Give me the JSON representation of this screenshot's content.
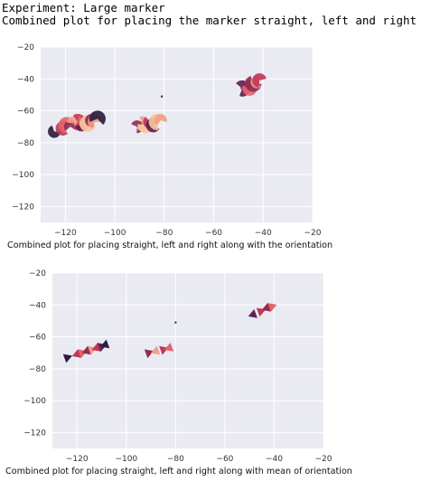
{
  "header": {
    "line1": "Experiment: Large marker",
    "line2": "Combined plot for placing the marker straight, left and right"
  },
  "colors": {
    "plot_background": "#eaeaf2",
    "gridline": "#ffffff",
    "palette": [
      "#2d1e3e",
      "#5e2250",
      "#8f2d56",
      "#c0395a",
      "#e0666a",
      "#f09e85",
      "#f6c6a0"
    ]
  },
  "chart_data": [
    {
      "type": "scatter",
      "title": "",
      "caption": "Combined plot for placing straight, left and right along with the orientation",
      "xlabel": "",
      "ylabel": "",
      "xlim": [
        -130,
        -20
      ],
      "ylim": [
        -130,
        -20
      ],
      "xticks": [
        -120,
        -100,
        -80,
        -60,
        -40,
        -20
      ],
      "yticks": [
        -20,
        -40,
        -60,
        -80,
        -100,
        -120
      ],
      "xtick_labels": [
        "−120",
        "−100",
        "−80",
        "−60",
        "−40",
        "−20"
      ],
      "ytick_labels": [
        "−20",
        "−40",
        "−60",
        "−80",
        "−100",
        "−120"
      ],
      "marker": "large orientation wedge",
      "grid": true,
      "points": [
        {
          "x": -124.5,
          "y": -73,
          "c": 0
        },
        {
          "x": -121,
          "y": -71,
          "c": 3
        },
        {
          "x": -119.5,
          "y": -69,
          "c": 4
        },
        {
          "x": -118,
          "y": -70,
          "c": 2
        },
        {
          "x": -116.5,
          "y": -68,
          "c": 5
        },
        {
          "x": -115,
          "y": -67,
          "c": 3
        },
        {
          "x": -113.5,
          "y": -69,
          "c": 1
        },
        {
          "x": -112,
          "y": -66,
          "c": 4
        },
        {
          "x": -111,
          "y": -68,
          "c": 6
        },
        {
          "x": -109.5,
          "y": -66,
          "c": 2
        },
        {
          "x": -108,
          "y": -67,
          "c": 5
        },
        {
          "x": -107,
          "y": -65,
          "c": 0
        },
        {
          "x": -91,
          "y": -70,
          "c": 2
        },
        {
          "x": -89,
          "y": -68,
          "c": 5
        },
        {
          "x": -87.5,
          "y": -69,
          "c": 6
        },
        {
          "x": -86,
          "y": -67,
          "c": 3
        },
        {
          "x": -84.5,
          "y": -69,
          "c": 1
        },
        {
          "x": -83,
          "y": -67,
          "c": 6
        },
        {
          "x": -81.5,
          "y": -66,
          "c": 5
        },
        {
          "x": -81,
          "y": -51,
          "c": 0
        },
        {
          "x": -48.5,
          "y": -46,
          "c": 1
        },
        {
          "x": -47,
          "y": -44,
          "c": 3
        },
        {
          "x": -45.5,
          "y": -46,
          "c": 4
        },
        {
          "x": -44,
          "y": -43,
          "c": 2
        },
        {
          "x": -42.5,
          "y": -42,
          "c": 5
        },
        {
          "x": -41.5,
          "y": -41,
          "c": 3
        }
      ]
    },
    {
      "type": "scatter",
      "title": "",
      "caption": "Combined plot for placing straight, left and right along with mean of orientation",
      "xlabel": "",
      "ylabel": "",
      "xlim": [
        -130,
        -20
      ],
      "ylim": [
        -130,
        -20
      ],
      "xticks": [
        -120,
        -100,
        -80,
        -60,
        -40,
        -20
      ],
      "yticks": [
        -20,
        -40,
        -60,
        -80,
        -100,
        -120
      ],
      "xtick_labels": [
        "−120",
        "−100",
        "−80",
        "−60",
        "−40",
        "−20"
      ],
      "ytick_labels": [
        "−20",
        "−40",
        "−60",
        "−80",
        "−100",
        "−120"
      ],
      "marker": "triangle pointing along mean orientation",
      "grid": true,
      "points": [
        {
          "x": -124,
          "y": -73,
          "c": 0
        },
        {
          "x": -120,
          "y": -71,
          "c": 3
        },
        {
          "x": -118,
          "y": -70,
          "c": 4
        },
        {
          "x": -116,
          "y": -69,
          "c": 2
        },
        {
          "x": -114,
          "y": -68,
          "c": 5
        },
        {
          "x": -112,
          "y": -67,
          "c": 3
        },
        {
          "x": -110,
          "y": -66,
          "c": 1
        },
        {
          "x": -108.5,
          "y": -65,
          "c": 0
        },
        {
          "x": -91,
          "y": -70,
          "c": 2
        },
        {
          "x": -88,
          "y": -69,
          "c": 5
        },
        {
          "x": -85,
          "y": -68,
          "c": 3
        },
        {
          "x": -82.5,
          "y": -67,
          "c": 4
        },
        {
          "x": -80,
          "y": -51,
          "c": 0
        },
        {
          "x": -48.5,
          "y": -46,
          "c": 1
        },
        {
          "x": -45.5,
          "y": -44,
          "c": 3
        },
        {
          "x": -43,
          "y": -42,
          "c": 2
        },
        {
          "x": -41,
          "y": -41,
          "c": 4
        }
      ]
    }
  ]
}
